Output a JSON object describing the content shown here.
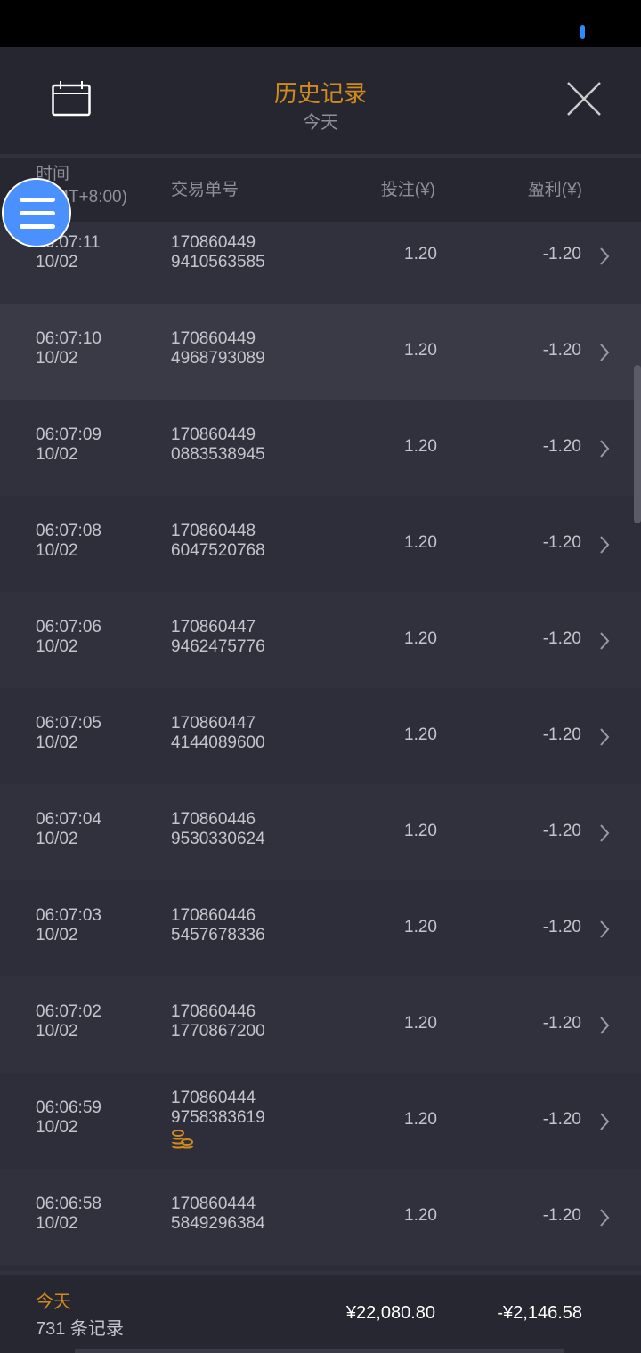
{
  "header": {
    "title": "历史记录",
    "subtitle": "今天"
  },
  "columns": {
    "time": "时间",
    "timezone": "(GMT+8:00)",
    "id": "交易单号",
    "bet": "投注(¥)",
    "profit": "盈利(¥)"
  },
  "rows": [
    {
      "time": "06:07:11",
      "date": "10/02",
      "id1": "170860449",
      "id2": "9410563585",
      "bet": "1.20",
      "profit": "-1.20"
    },
    {
      "time": "06:07:10",
      "date": "10/02",
      "id1": "170860449",
      "id2": "4968793089",
      "bet": "1.20",
      "profit": "-1.20",
      "highlighted": true
    },
    {
      "time": "06:07:09",
      "date": "10/02",
      "id1": "170860449",
      "id2": "0883538945",
      "bet": "1.20",
      "profit": "-1.20"
    },
    {
      "time": "06:07:08",
      "date": "10/02",
      "id1": "170860448",
      "id2": "6047520768",
      "bet": "1.20",
      "profit": "-1.20"
    },
    {
      "time": "06:07:06",
      "date": "10/02",
      "id1": "170860447",
      "id2": "9462475776",
      "bet": "1.20",
      "profit": "-1.20"
    },
    {
      "time": "06:07:05",
      "date": "10/02",
      "id1": "170860447",
      "id2": "4144089600",
      "bet": "1.20",
      "profit": "-1.20"
    },
    {
      "time": "06:07:04",
      "date": "10/02",
      "id1": "170860446",
      "id2": "9530330624",
      "bet": "1.20",
      "profit": "-1.20"
    },
    {
      "time": "06:07:03",
      "date": "10/02",
      "id1": "170860446",
      "id2": "5457678336",
      "bet": "1.20",
      "profit": "-1.20"
    },
    {
      "time": "06:07:02",
      "date": "10/02",
      "id1": "170860446",
      "id2": "1770867200",
      "bet": "1.20",
      "profit": "-1.20"
    },
    {
      "time": "06:06:59",
      "date": "10/02",
      "id1": "170860444",
      "id2": "9758383619",
      "bet": "1.20",
      "profit": "-1.20",
      "coin_icon": true
    },
    {
      "time": "06:06:58",
      "date": "10/02",
      "id1": "170860444",
      "id2": "5849296384",
      "bet": "1.20",
      "profit": "-1.20"
    }
  ],
  "footer": {
    "label": "今天",
    "count": "731 条记录",
    "total_bet": "¥22,080.80",
    "total_profit": "-¥2,146.58"
  },
  "colors": {
    "accent": "#d08a1e",
    "fab": "#4a90ff",
    "background": "#2c2d39"
  }
}
